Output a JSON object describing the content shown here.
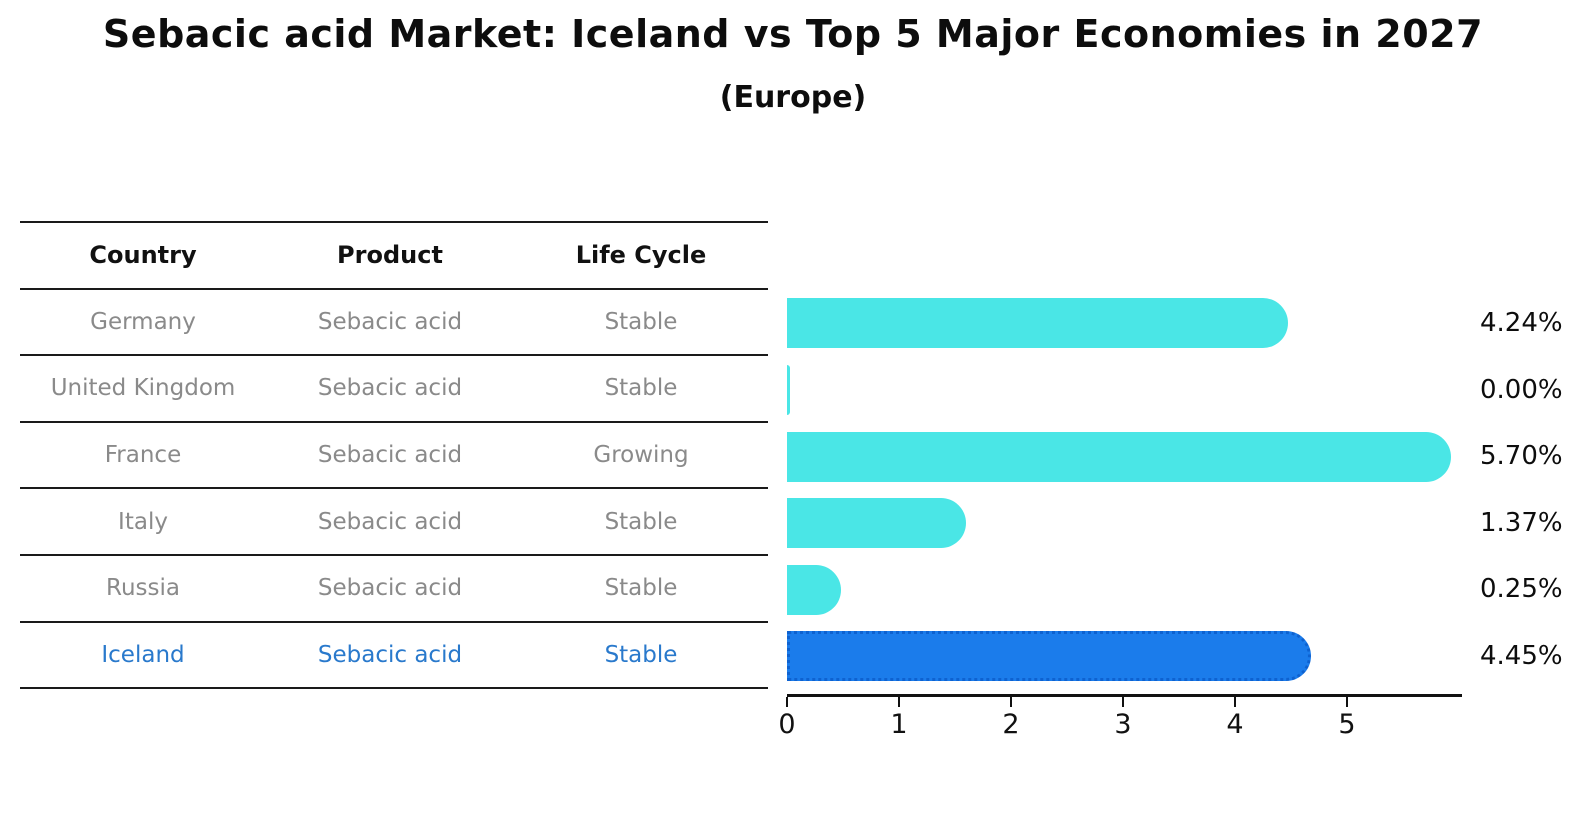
{
  "title": "Sebacic acid Market: Iceland vs Top 5 Major Economies in 2027",
  "subtitle": "(Europe)",
  "table": {
    "headers": [
      "Country",
      "Product",
      "Life Cycle"
    ],
    "rows": [
      {
        "country": "Germany",
        "product": "Sebacic acid",
        "life_cycle": "Stable",
        "highlight": false
      },
      {
        "country": "United Kingdom",
        "product": "Sebacic acid",
        "life_cycle": "Stable",
        "highlight": false
      },
      {
        "country": "France",
        "product": "Sebacic acid",
        "life_cycle": "Growing",
        "highlight": false
      },
      {
        "country": "Italy",
        "product": "Sebacic acid",
        "life_cycle": "Stable",
        "highlight": false
      },
      {
        "country": "Russia",
        "product": "Sebacic acid",
        "life_cycle": "Stable",
        "highlight": false
      },
      {
        "country": "Iceland",
        "product": "Sebacic acid",
        "life_cycle": "Stable",
        "highlight": true
      }
    ]
  },
  "chart_data": {
    "type": "bar",
    "orientation": "horizontal",
    "title": "Sebacic acid Market: Iceland vs Top 5 Major Economies in 2027",
    "subtitle": "(Europe)",
    "categories": [
      "Germany",
      "United Kingdom",
      "France",
      "Italy",
      "Russia",
      "Iceland"
    ],
    "values": [
      4.24,
      0.0,
      5.7,
      1.37,
      0.25,
      4.45
    ],
    "value_labels": [
      "4.24%",
      "0.00%",
      "5.70%",
      "1.37%",
      "0.25%",
      "4.45%"
    ],
    "xticks": [
      0,
      1,
      2,
      3,
      4,
      5
    ],
    "xlim": [
      0,
      6
    ],
    "grid": false,
    "legend": false,
    "highlight_index": 5,
    "colors": {
      "bar": "#4ae6e6",
      "highlight_bar": "#1b7ceb",
      "highlight_bar_border": "#0e62d0",
      "highlight_text": "#2979cc",
      "cell_text": "#8a8a8a",
      "header_text": "#111111",
      "line": "#1a1a1a"
    }
  }
}
